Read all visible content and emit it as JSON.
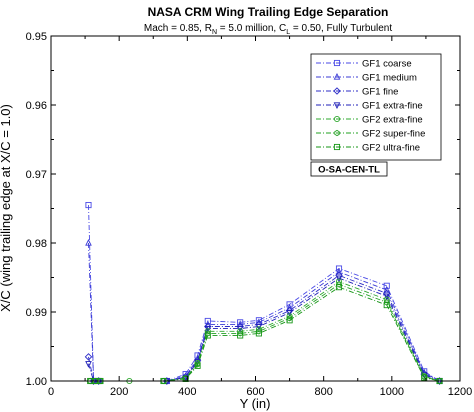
{
  "chart_data": {
    "type": "line",
    "title": "NASA CRM Wing Trailing Edge Separation",
    "subtitle": {
      "prefix": "Mach = 0.85, R",
      "re_sub": "N",
      "middle": " = 5.0 million, C",
      "cl_sub": "L",
      "suffix": " = 0.50, Fully Turbulent"
    },
    "xlabel": "Y (in)",
    "ylabel": "X/C (wing trailing edge at X/C = 1.0)",
    "xlim": [
      0,
      1200
    ],
    "ylim": [
      0.95,
      1.0
    ],
    "y_inverted": true,
    "x_ticks": [
      "0",
      "200",
      "400",
      "600",
      "800",
      "1000",
      "1200"
    ],
    "x_tick_values": [
      0,
      200,
      400,
      600,
      800,
      1000,
      1200
    ],
    "y_ticks": [
      "0.95",
      "0.96",
      "0.97",
      "0.98",
      "0.99",
      "1.00"
    ],
    "y_tick_values": [
      0.95,
      0.96,
      0.97,
      0.98,
      0.99,
      1.0
    ],
    "grid": false,
    "legend_position": "top-right",
    "annotation": "O-SA-CEN-TL",
    "series": [
      {
        "name": "GF1 coarse",
        "color": "#4a4ae6",
        "marker": "square",
        "x": [
          110,
          125,
          140,
          340,
          395,
          430,
          460,
          555,
          610,
          700,
          845,
          985,
          1095,
          1140
        ],
        "y": [
          0.9745,
          1.0,
          1.0,
          1.0,
          0.999,
          0.9963,
          0.9913,
          0.9915,
          0.9912,
          0.9889,
          0.9837,
          0.9862,
          0.9986,
          1.0
        ]
      },
      {
        "name": "GF1 medium",
        "color": "#3b3bd6",
        "marker": "triangle-up",
        "x": [
          110,
          125,
          140,
          340,
          395,
          430,
          460,
          555,
          610,
          700,
          845,
          985,
          1095,
          1140
        ],
        "y": [
          0.98,
          1.0,
          1.0,
          1.0,
          0.9993,
          0.9968,
          0.9918,
          0.9918,
          0.9915,
          0.9894,
          0.9842,
          0.9868,
          0.9988,
          1.0
        ]
      },
      {
        "name": "GF1 fine",
        "color": "#2c2cc7",
        "marker": "diamond",
        "x": [
          110,
          125,
          140,
          340,
          395,
          430,
          460,
          555,
          610,
          700,
          845,
          985,
          1095,
          1140
        ],
        "y": [
          0.9965,
          1.0,
          1.0,
          1.0,
          0.9994,
          0.997,
          0.9921,
          0.9921,
          0.9918,
          0.9898,
          0.9847,
          0.9873,
          0.999,
          1.0
        ]
      },
      {
        "name": "GF1 extra-fine",
        "color": "#1f1fb8",
        "marker": "triangle-down",
        "x": [
          110,
          125,
          140,
          340,
          395,
          430,
          460,
          555,
          610,
          700,
          845,
          985,
          1095,
          1140
        ],
        "y": [
          0.9975,
          1.0,
          1.0,
          1.0,
          0.9995,
          0.9972,
          0.9924,
          0.9924,
          0.9921,
          0.9901,
          0.9851,
          0.9877,
          0.9991,
          1.0
        ]
      },
      {
        "name": "GF2 extra-fine",
        "color": "#2ea82e",
        "marker": "circle",
        "x": [
          115,
          130,
          145,
          230,
          330,
          395,
          430,
          460,
          555,
          610,
          700,
          845,
          985,
          1095,
          1140
        ],
        "y": [
          1.0,
          1.0,
          1.0,
          1.0,
          1.0,
          0.9996,
          0.9974,
          0.9928,
          0.9928,
          0.9925,
          0.9906,
          0.9856,
          0.9882,
          0.9993,
          1.0
        ]
      },
      {
        "name": "GF2 super-fine",
        "color": "#22a022",
        "marker": "hexagon",
        "x": [
          115,
          130,
          145,
          330,
          395,
          430,
          460,
          555,
          610,
          700,
          845,
          985,
          1095,
          1140
        ],
        "y": [
          1.0,
          1.0,
          1.0,
          1.0,
          0.9996,
          0.9976,
          0.9931,
          0.9931,
          0.9928,
          0.9909,
          0.986,
          0.9886,
          0.9994,
          1.0
        ]
      },
      {
        "name": "GF2 ultra-fine",
        "color": "#169616",
        "marker": "square",
        "x": [
          115,
          130,
          145,
          330,
          395,
          430,
          460,
          555,
          610,
          700,
          845,
          985,
          1095,
          1140
        ],
        "y": [
          1.0,
          1.0,
          1.0,
          1.0,
          0.9997,
          0.9978,
          0.9934,
          0.9934,
          0.9931,
          0.9912,
          0.9864,
          0.989,
          0.9995,
          1.0
        ]
      }
    ]
  }
}
